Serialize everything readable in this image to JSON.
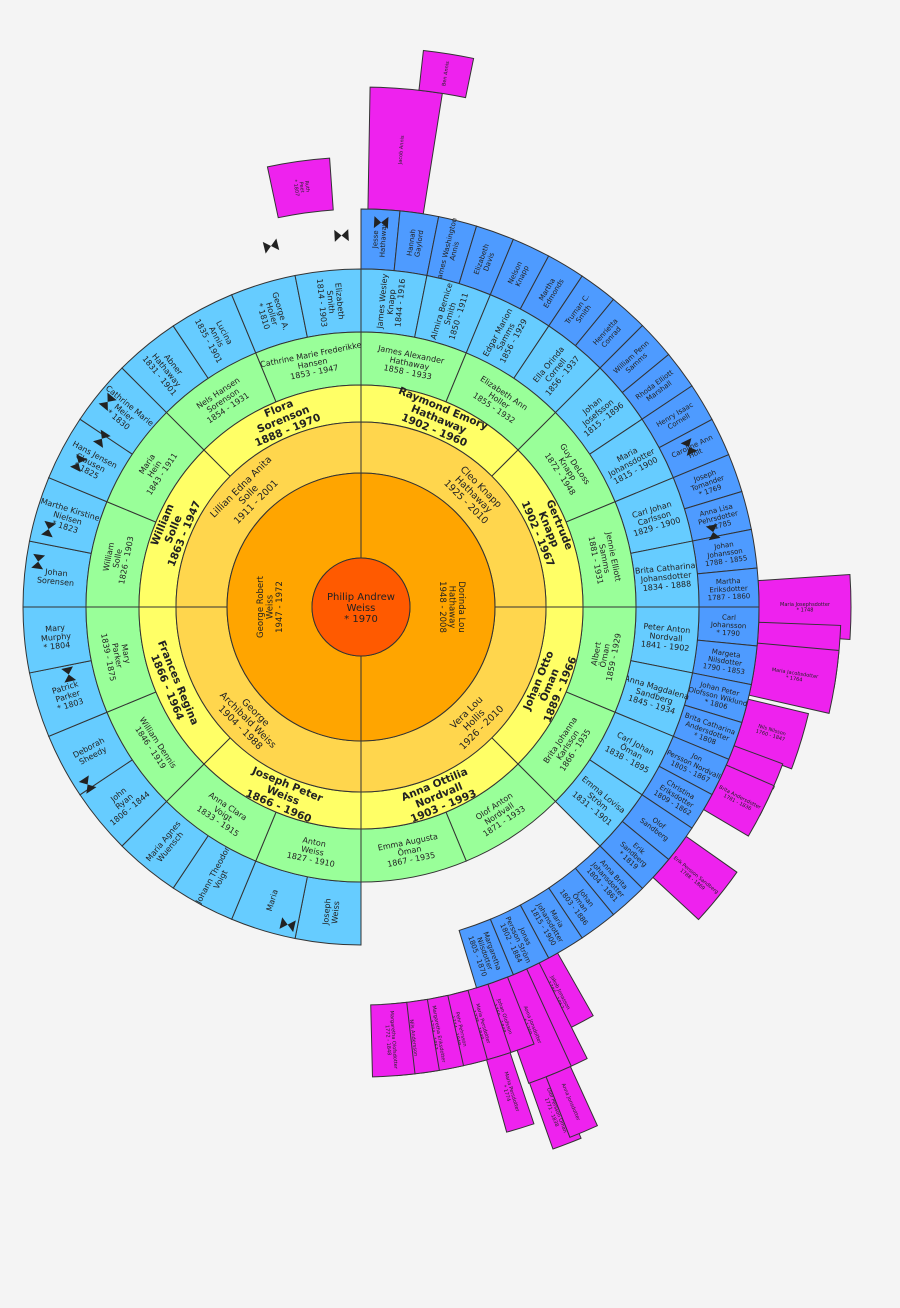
{
  "center": {
    "lines": [
      "Philip Andrew",
      "Weiss",
      "* 1970"
    ]
  },
  "gen1": [
    {
      "lines": [
        "George Robert",
        "Weiss",
        "1947 - 1972"
      ]
    },
    {
      "lines": [
        "Dorinda Lou",
        "Hathaway",
        "1948 - 2008"
      ]
    }
  ],
  "gen2": [
    {
      "lines": [
        "George",
        "Archibald Weiss",
        "1904 - 1988"
      ]
    },
    {
      "lines": [
        "Lillian Edna Anita",
        "Solle",
        "1911 - 2001"
      ]
    },
    {
      "lines": [
        "Cleo Knapp",
        "Hathaway",
        "1925 - 2010"
      ]
    },
    {
      "lines": [
        "Vera Lou",
        "Hollis",
        "1926 - 2010"
      ]
    }
  ],
  "gen3": [
    {
      "lines": [
        "Joseph Peter",
        "Weiss",
        "1866 - 1960"
      ]
    },
    {
      "lines": [
        "Frances Regina",
        "1866 - 1964"
      ]
    },
    {
      "lines": [
        "William",
        "Solle",
        "1863 - 1947"
      ]
    },
    {
      "lines": [
        "Flora",
        "Sorenson",
        "1888 - 1970"
      ]
    },
    {
      "lines": [
        "Raymond Emory",
        "Hathaway",
        "1902 - 1960"
      ]
    },
    {
      "lines": [
        "Gertrude",
        "Knapp",
        "1902 - 1967"
      ]
    },
    {
      "lines": [
        "Johan Otto",
        "Öman",
        "1889 - 1966"
      ]
    },
    {
      "lines": [
        "Anna Ottilia",
        "Nordvall",
        "1903 - 1993"
      ]
    }
  ],
  "gen4": [
    {
      "lines": [
        "Anton",
        "Weiss",
        "1827 - 1910"
      ]
    },
    {
      "lines": [
        "Anna Clara",
        "Voigt",
        "1833 - 1915"
      ]
    },
    {
      "lines": [
        "William Dennis",
        "1846 - 1919"
      ]
    },
    {
      "lines": [
        "Mary",
        "Parker",
        "1839 - 1875"
      ]
    },
    {
      "lines": [
        "William",
        "Solle",
        "1826 - 1903"
      ]
    },
    {
      "lines": [
        "Maria",
        "Hein",
        "1843 - 1911"
      ]
    },
    {
      "lines": [
        "Nels Hansen",
        "Sorenson",
        "1854 - 1931"
      ]
    },
    {
      "lines": [
        "Cathrine Marie Frederikke",
        "Hansen",
        "1853 - 1947"
      ]
    },
    {
      "lines": [
        "James Alexander",
        "Hathaway",
        "1858 - 1933"
      ]
    },
    {
      "lines": [
        "Elizabeth Ann",
        "Holler",
        "1855 - 1932"
      ]
    },
    {
      "lines": [
        "Guy DeLoss",
        "Knapp",
        "1872 - 1948"
      ]
    },
    {
      "lines": [
        "Jennie Elliott",
        "Samms",
        "1881 - 1931"
      ]
    },
    {
      "lines": [
        "Albert",
        "Öman",
        "1859 - 1929"
      ]
    },
    {
      "lines": [
        "Brita Johanna",
        "Karlsson",
        "1866 - 1935"
      ]
    },
    {
      "lines": [
        "Olof Anton",
        "Nordvall",
        "1871 - 1933"
      ]
    },
    {
      "lines": [
        "Emma Augusta",
        "Öman",
        "1867 - 1935"
      ]
    }
  ],
  "gen5": [
    {
      "lines": [
        "Joseph",
        "Weiss"
      ]
    },
    {
      "lines": [
        "Maria"
      ]
    },
    {
      "lines": [
        "Johann Theodor",
        "Voigt"
      ]
    },
    {
      "lines": [
        "Maria Agnes",
        "Wuensch"
      ]
    },
    {
      "lines": [
        "John",
        "Ryan",
        "1806 - 1844"
      ]
    },
    {
      "lines": [
        "Deborah",
        "Sheedy"
      ]
    },
    {
      "lines": [
        "Patrick",
        "Parker",
        "* 1803"
      ]
    },
    {
      "lines": [
        "Mary",
        "Murphy",
        "* 1804"
      ]
    },
    {
      "lines": [
        "Johan",
        "Sorensen"
      ]
    },
    {
      "lines": [
        "Marthe Kirstine",
        "Nielsen",
        "* 1823"
      ]
    },
    {
      "lines": [
        "Hans Jensen",
        "Clausen",
        "* 1825"
      ]
    },
    {
      "lines": [
        "Cathrine Marie",
        "Meier",
        "* 1830"
      ]
    },
    {
      "lines": [
        "Abner",
        "Hathaway",
        "1831 - 1901"
      ]
    },
    {
      "lines": [
        "Lucina",
        "Annis",
        "1835 - 1901"
      ]
    },
    {
      "lines": [
        "George A.",
        "Holler",
        "* 1810"
      ]
    },
    {
      "lines": [
        "Elizabeth",
        "Smith",
        "1814 - 1903"
      ]
    },
    {
      "lines": [
        "James Wesley",
        "Knapp",
        "1844 - 1916"
      ]
    },
    {
      "lines": [
        "Almira Bernice",
        "Smith",
        "1850 - 1911"
      ]
    },
    {
      "lines": [
        "Edgar Marion",
        "Samms",
        "1856 - 1929"
      ]
    },
    {
      "lines": [
        "Ella Orinda",
        "Cornell",
        "1856 - 1937"
      ]
    },
    {
      "lines": [
        "Johan",
        "Josefsson",
        "1815 - 1896"
      ]
    },
    {
      "lines": [
        "Maria",
        "Johansdotter",
        "1815 - 1900"
      ]
    },
    {
      "lines": [
        "Carl Johan",
        "Carlsson",
        "1829 - 1900"
      ]
    },
    {
      "lines": [
        "Brita Catharina",
        "Johansdotter",
        "1834 - 1888"
      ]
    },
    {
      "lines": [
        "Peter Anton",
        "Nordvall",
        "1841 - 1902"
      ]
    },
    {
      "lines": [
        "Anna Magdalena",
        "Sandberg",
        "1845 - 1934"
      ]
    },
    {
      "lines": [
        "Carl Johan",
        "Öman",
        "1838 - 1895"
      ]
    },
    {
      "lines": [
        "Emma Lovisa",
        "Ström",
        "1831 - 1901"
      ]
    }
  ],
  "gen6": [
    {
      "lines": [
        "Jesse",
        "Hathaway"
      ]
    },
    {
      "lines": [
        "Hannah",
        "Gaylord"
      ]
    },
    {
      "lines": [
        "James Washington",
        "Annis"
      ]
    },
    {
      "lines": [
        "Elizabeth",
        "Davis"
      ]
    },
    {
      "lines": [
        "Nelson",
        "Knapp"
      ]
    },
    {
      "lines": [
        "Martha",
        "Edmonds"
      ]
    },
    {
      "lines": [
        "Truman C.",
        "Smith"
      ]
    },
    {
      "lines": [
        "Henrietta",
        "Conrad"
      ]
    },
    {
      "lines": [
        "William Penn",
        "Samms"
      ]
    },
    {
      "lines": [
        "Rhoda Elliott",
        "Marshall"
      ]
    },
    {
      "lines": [
        "Henry Isaac",
        "Cornell"
      ]
    },
    {
      "lines": [
        "Caroline Ann",
        "Holt"
      ]
    },
    {
      "lines": [
        "Joseph",
        "Tomander",
        "* 1769"
      ]
    },
    {
      "lines": [
        "Anna Lisa",
        "Pehrsdotter",
        "* 1785"
      ]
    },
    {
      "lines": [
        "Johan",
        "Johansson",
        "1788 - 1855"
      ]
    },
    {
      "lines": [
        "Martha",
        "Eriksdotter",
        "1787 - 1860"
      ]
    },
    {
      "lines": [
        "Carl",
        "Johansson",
        "* 1790"
      ]
    },
    {
      "lines": [
        "Margeta",
        "Nilsdotter",
        "1790 - 1853"
      ]
    },
    {
      "lines": [
        "Johan Peter",
        "Olofsson Wiklund",
        "* 1806"
      ]
    },
    {
      "lines": [
        "Brita Catharina",
        "Andersdotter",
        "* 1808"
      ]
    },
    {
      "lines": [
        "Jon",
        "Persson Nordvall",
        "1805 - 1867"
      ]
    },
    {
      "lines": [
        "Christina",
        "Eriksdotter",
        "1809 - 1862"
      ]
    },
    {
      "lines": [
        "Olof",
        "Sandberg"
      ]
    },
    {
      "lines": [
        "Erik",
        "Sandberg",
        "* 1819"
      ]
    },
    {
      "lines": [
        "Anna Brita",
        "Johansdotter",
        "1804 - 1861"
      ]
    },
    {
      "lines": [
        "Johan",
        "Öman",
        "1803 - 1886"
      ]
    },
    {
      "lines": [
        "Maria",
        "Johansdotter",
        "1815 - 1900"
      ]
    },
    {
      "lines": [
        "Jonas",
        "Persson Ström",
        "1802 - 1884"
      ]
    },
    {
      "lines": [
        "Margaretha",
        "Nilsdotter",
        "1805 - 1870"
      ]
    }
  ],
  "extensions": [
    {
      "lines": [
        "Ruth",
        "Peet",
        "* 1807"
      ]
    },
    {
      "lines": [
        "Jacob Annis"
      ]
    },
    {
      "lines": [
        "Ben Annis"
      ]
    },
    {
      "lines": [
        "Maria Josephsdotter",
        "* 1748"
      ]
    },
    {
      "lines": [
        "Johan Carlsson",
        "* 1769"
      ]
    },
    {
      "lines": [
        "Maria Jacobsdotter",
        "* 1764"
      ]
    },
    {
      "lines": [
        "Nils Nilsson",
        "1760 - 1847"
      ]
    },
    {
      "lines": [
        "Olof Olofsson Wiklund",
        "1779 - 1820"
      ]
    },
    {
      "lines": [
        "Brita Andersdotter",
        "1781 - 1836"
      ]
    },
    {
      "lines": [
        "Erik Persson Sandberg",
        "1788 - 1869"
      ]
    },
    {
      "lines": [
        "Jakob Jonasson",
        "1780 - 1857"
      ]
    },
    {
      "lines": [
        "Anna Jonsdotter",
        "1776"
      ]
    },
    {
      "lines": [
        "Anna Jonsdotter",
        "* 1760"
      ]
    },
    {
      "lines": [
        "Johan Olofsson",
        "1769 - 1848"
      ]
    },
    {
      "lines": [
        "Maria Persdotter",
        "1775 - 1848"
      ]
    },
    {
      "lines": [
        "Pehr Pehrsson",
        "1774 - 1848"
      ]
    },
    {
      "lines": [
        "Margaretha Eriksdotter",
        "1774 - 1853"
      ]
    },
    {
      "lines": [
        "Nils Andersson"
      ]
    },
    {
      "lines": [
        "Margaretha Olofsdotter",
        "1772 - 1848"
      ]
    },
    {
      "lines": [
        "Olof Persson Öman",
        "1771 - 1838"
      ]
    },
    {
      "lines": [
        "Maria Persdotter",
        "* 1774"
      ]
    },
    {
      "lines": [
        "Anna Jonsdotter"
      ]
    }
  ],
  "colors": {
    "gen0": "#ff5a00",
    "gen1": "#ffa500",
    "gen2": "#ffd64d",
    "gen3": "#ffff66",
    "gen4": "#99ff99",
    "gen5": "#66ccff",
    "gen6": "#4e9bff",
    "ext": "#ee22ee",
    "stroke": "#333333"
  }
}
